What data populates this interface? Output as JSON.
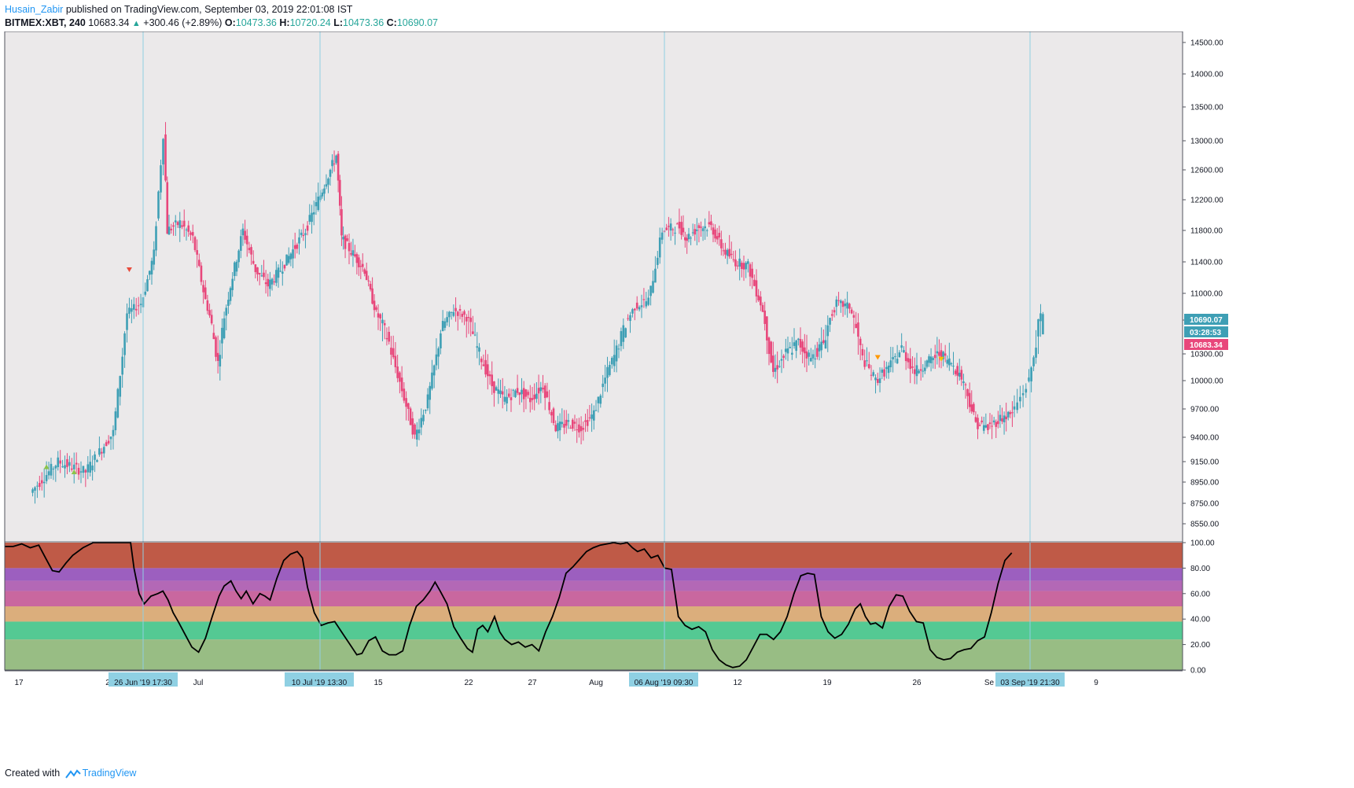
{
  "header": {
    "user": "Husain_Zabir",
    "published_text": "published on TradingView.com, September 03, 2019 22:01:08 IST",
    "symbol": "BITMEX:XBT, 240",
    "last_price": "10683.34",
    "change_arrow": "▲",
    "change": "+300.46 (+2.89%)",
    "o_label": "O:",
    "o_value": "10473.36",
    "h_label": "H:",
    "h_value": "10720.24",
    "l_label": "L:",
    "l_value": "10473.36",
    "c_label": "C:",
    "c_value": "10690.07"
  },
  "footer": {
    "created_with": "Created with",
    "brand": "TradingView"
  },
  "colors": {
    "up": "#3e9fb5",
    "down": "#e8477b",
    "plot_bg": "#ebe9ea",
    "crosshair": "#8fd0e3",
    "time_tag": "#8fd0e3",
    "stoch_line": "#000000"
  },
  "price_tags": [
    {
      "value": "10690.07",
      "color": "#3e9fb5"
    },
    {
      "value": "03:28:53",
      "color": "#3e9fb5"
    },
    {
      "value": "10683.34",
      "color": "#e8477b"
    }
  ],
  "time_tags": [
    "26 Jun '19   17:30",
    "10 Jul '19   13:30",
    "06 Aug '19   09:30",
    "03 Sep '19   21:30"
  ],
  "chart_data": [
    {
      "type": "candlestick",
      "price_axis_ticks": [
        "14500.00",
        "14000.00",
        "13500.00",
        "13000.00",
        "12600.00",
        "12200.00",
        "11800.00",
        "11400.00",
        "11000.00",
        "10600.00",
        "10300.00",
        "10000.00",
        "9700.00",
        "9400.00",
        "9150.00",
        "8950.00",
        "8750.00",
        "8550.00"
      ],
      "time_axis_ticks": [
        "17",
        "2",
        "Jul",
        "15",
        "22",
        "27",
        "Aug",
        "12",
        "19",
        "26",
        "Se",
        "9"
      ],
      "close_path": [
        [
          "17 Jun",
          8850
        ],
        [
          "19 Jun",
          9150
        ],
        [
          "21 Jun",
          9050
        ],
        [
          "23 Jun",
          9450
        ],
        [
          "24 Jun",
          10700
        ],
        [
          "25 Jun",
          10850
        ],
        [
          "26 Jun",
          11500
        ],
        [
          "26 Jun 17:30",
          13100
        ],
        [
          "27 Jun",
          11800
        ],
        [
          "28 Jun",
          11900
        ],
        [
          "29 Jun",
          11700
        ],
        [
          "30 Jun",
          10900
        ],
        [
          "1 Jul",
          10200
        ],
        [
          "2 Jul",
          11100
        ],
        [
          "3 Jul",
          11800
        ],
        [
          "4 Jul",
          11300
        ],
        [
          "5 Jul",
          11100
        ],
        [
          "6 Jul",
          11300
        ],
        [
          "8 Jul",
          11800
        ],
        [
          "10 Jul 13:30",
          12800
        ],
        [
          "11 Jul",
          11700
        ],
        [
          "12 Jul",
          11500
        ],
        [
          "13 Jul",
          11300
        ],
        [
          "14 Jul",
          10700
        ],
        [
          "15 Jul",
          10400
        ],
        [
          "16 Jul",
          9900
        ],
        [
          "17 Jul",
          9400
        ],
        [
          "18 Jul",
          9800
        ],
        [
          "19 Jul",
          10500
        ],
        [
          "20 Jul",
          10750
        ],
        [
          "21 Jul",
          10650
        ],
        [
          "22 Jul",
          10300
        ],
        [
          "23 Jul",
          9950
        ],
        [
          "24 Jul",
          9800
        ],
        [
          "25 Jul",
          9900
        ],
        [
          "26 Jul",
          9800
        ],
        [
          "27 Jul",
          9950
        ],
        [
          "28 Jul",
          9500
        ],
        [
          "29 Jul",
          9550
        ],
        [
          "30 Jul",
          9500
        ],
        [
          "31 Jul",
          9650
        ],
        [
          "1 Aug",
          10100
        ],
        [
          "2 Aug",
          10450
        ],
        [
          "3 Aug",
          10800
        ],
        [
          "4 Aug",
          10900
        ],
        [
          "5 Aug",
          11800
        ],
        [
          "6 Aug 09:30",
          11850
        ],
        [
          "7 Aug",
          11700
        ],
        [
          "8 Aug",
          11850
        ],
        [
          "9 Aug",
          11850
        ],
        [
          "10 Aug",
          11550
        ],
        [
          "11 Aug",
          11400
        ],
        [
          "12 Aug",
          11350
        ],
        [
          "13 Aug",
          10850
        ],
        [
          "14 Aug",
          10100
        ],
        [
          "15 Aug",
          10300
        ],
        [
          "16 Aug",
          10400
        ],
        [
          "17 Aug",
          10250
        ],
        [
          "18 Aug",
          10400
        ],
        [
          "19 Aug",
          10850
        ],
        [
          "20 Aug",
          10800
        ],
        [
          "21 Aug",
          10250
        ],
        [
          "22 Aug",
          10000
        ],
        [
          "23 Aug",
          10150
        ],
        [
          "24 Aug",
          10350
        ],
        [
          "25 Aug",
          10100
        ],
        [
          "26 Aug",
          10200
        ],
        [
          "27 Aug",
          10300
        ],
        [
          "28 Aug",
          10200
        ],
        [
          "29 Aug",
          10000
        ],
        [
          "30 Aug",
          9550
        ],
        [
          "31 Aug",
          9500
        ],
        [
          "1 Sep",
          9600
        ],
        [
          "2 Sep",
          9650
        ],
        [
          "3 Sep",
          10000
        ],
        [
          "3 Sep 21:30",
          10690
        ]
      ],
      "markers": [
        {
          "type": "sell",
          "color": "#e84c3d",
          "time": "24 Jun",
          "price": 11300
        },
        {
          "type": "buy",
          "color": "#8bc34a",
          "time": "18 Jun",
          "price": 9100
        },
        {
          "type": "buy",
          "color": "#8bc34a",
          "time": "20 Jun",
          "price": 9050
        },
        {
          "type": "sell",
          "color": "#ff9800",
          "time": "22 Aug",
          "price": 10260
        },
        {
          "type": "sell",
          "color": "#f5c000",
          "time": "27 Aug",
          "price": 10240
        }
      ]
    },
    {
      "type": "line",
      "name": "",
      "ylim": [
        0,
        100
      ],
      "axis_ticks": [
        "100.00",
        "80.00",
        "60.00",
        "40.00",
        "20.00",
        "0.00"
      ],
      "zones": [
        {
          "from": 80,
          "to": 100,
          "color": "#bf5a47"
        },
        {
          "from": 70,
          "to": 80,
          "color": "#9c5fbf"
        },
        {
          "from": 62,
          "to": 70,
          "color": "#b368b6"
        },
        {
          "from": 50,
          "to": 62,
          "color": "#c9679f"
        },
        {
          "from": 38,
          "to": 50,
          "color": "#dbae7c"
        },
        {
          "from": 24,
          "to": 38,
          "color": "#54c993"
        },
        {
          "from": 0,
          "to": 24,
          "color": "#98bd84"
        }
      ],
      "points": [
        [
          0,
          97
        ],
        [
          0.5,
          97
        ],
        [
          1,
          99
        ],
        [
          1.5,
          96
        ],
        [
          2,
          98
        ],
        [
          2.4,
          88
        ],
        [
          2.8,
          78
        ],
        [
          3.2,
          77
        ],
        [
          3.6,
          84
        ],
        [
          4,
          90
        ],
        [
          4.6,
          96
        ],
        [
          5.2,
          100
        ],
        [
          5.8,
          100
        ],
        [
          6.4,
          100
        ],
        [
          7,
          100
        ],
        [
          7.4,
          100
        ],
        [
          7.6,
          80
        ],
        [
          7.9,
          60
        ],
        [
          8.2,
          52
        ],
        [
          8.6,
          58
        ],
        [
          9,
          60
        ],
        [
          9.3,
          62
        ],
        [
          9.6,
          55
        ],
        [
          9.9,
          45
        ],
        [
          10.2,
          38
        ],
        [
          10.6,
          28
        ],
        [
          11,
          18
        ],
        [
          11.4,
          14
        ],
        [
          11.8,
          25
        ],
        [
          12.2,
          42
        ],
        [
          12.6,
          58
        ],
        [
          12.9,
          66
        ],
        [
          13.3,
          70
        ],
        [
          13.6,
          62
        ],
        [
          13.9,
          56
        ],
        [
          14.2,
          62
        ],
        [
          14.6,
          52
        ],
        [
          15,
          60
        ],
        [
          15.3,
          58
        ],
        [
          15.6,
          55
        ],
        [
          16,
          72
        ],
        [
          16.4,
          86
        ],
        [
          16.8,
          91
        ],
        [
          17.2,
          93
        ],
        [
          17.5,
          88
        ],
        [
          17.8,
          65
        ],
        [
          18.2,
          45
        ],
        [
          18.6,
          35
        ],
        [
          19,
          37
        ],
        [
          19.4,
          38
        ],
        [
          19.8,
          30
        ],
        [
          20.3,
          20
        ],
        [
          20.7,
          12
        ],
        [
          21,
          13
        ],
        [
          21.4,
          23
        ],
        [
          21.8,
          26
        ],
        [
          22.2,
          15
        ],
        [
          22.6,
          12
        ],
        [
          23,
          12
        ],
        [
          23.4,
          15
        ],
        [
          23.8,
          35
        ],
        [
          24.2,
          50
        ],
        [
          24.6,
          55
        ],
        [
          25,
          62
        ],
        [
          25.3,
          69
        ],
        [
          25.6,
          62
        ],
        [
          26,
          52
        ],
        [
          26.4,
          34
        ],
        [
          26.8,
          25
        ],
        [
          27.2,
          17
        ],
        [
          27.5,
          14
        ],
        [
          27.8,
          32
        ],
        [
          28.1,
          35
        ],
        [
          28.4,
          30
        ],
        [
          28.8,
          42
        ],
        [
          29.1,
          30
        ],
        [
          29.4,
          24
        ],
        [
          29.8,
          20
        ],
        [
          30.2,
          22
        ],
        [
          30.6,
          18
        ],
        [
          31,
          20
        ],
        [
          31.4,
          15
        ],
        [
          31.8,
          30
        ],
        [
          32.2,
          42
        ],
        [
          32.6,
          57
        ],
        [
          33,
          76
        ],
        [
          33.4,
          81
        ],
        [
          33.8,
          87
        ],
        [
          34.2,
          93
        ],
        [
          34.6,
          96
        ],
        [
          35,
          98
        ],
        [
          35.4,
          99
        ],
        [
          35.8,
          100
        ],
        [
          36.2,
          99
        ],
        [
          36.6,
          100
        ],
        [
          36.9,
          96
        ],
        [
          37.2,
          93
        ],
        [
          37.6,
          95
        ],
        [
          38,
          88
        ],
        [
          38.4,
          90
        ],
        [
          38.8,
          80
        ],
        [
          39.2,
          79
        ],
        [
          39.6,
          42
        ],
        [
          40,
          35
        ],
        [
          40.4,
          32
        ],
        [
          40.8,
          34
        ],
        [
          41.2,
          30
        ],
        [
          41.6,
          16
        ],
        [
          42,
          8
        ],
        [
          42.4,
          4
        ],
        [
          42.8,
          2
        ],
        [
          43.2,
          3
        ],
        [
          43.6,
          8
        ],
        [
          44,
          18
        ],
        [
          44.4,
          28
        ],
        [
          44.8,
          28
        ],
        [
          45.2,
          24
        ],
        [
          45.6,
          30
        ],
        [
          46,
          42
        ],
        [
          46.4,
          60
        ],
        [
          46.8,
          74
        ],
        [
          47.2,
          76
        ],
        [
          47.6,
          75
        ],
        [
          48,
          42
        ],
        [
          48.4,
          30
        ],
        [
          48.8,
          25
        ],
        [
          49.2,
          28
        ],
        [
          49.6,
          36
        ],
        [
          50,
          48
        ],
        [
          50.3,
          52
        ],
        [
          50.6,
          42
        ],
        [
          50.9,
          36
        ],
        [
          51.2,
          37
        ],
        [
          51.6,
          33
        ],
        [
          52,
          50
        ],
        [
          52.4,
          59
        ],
        [
          52.8,
          58
        ],
        [
          53.2,
          46
        ],
        [
          53.6,
          38
        ],
        [
          54,
          37
        ],
        [
          54.4,
          16
        ],
        [
          54.8,
          10
        ],
        [
          55.2,
          8
        ],
        [
          55.6,
          9
        ],
        [
          56,
          14
        ],
        [
          56.4,
          16
        ],
        [
          56.8,
          17
        ],
        [
          57.2,
          23
        ],
        [
          57.6,
          26
        ],
        [
          58,
          45
        ],
        [
          58.4,
          68
        ],
        [
          58.8,
          86
        ],
        [
          59.2,
          92
        ]
      ],
      "x_range": [
        0,
        60
      ]
    }
  ]
}
